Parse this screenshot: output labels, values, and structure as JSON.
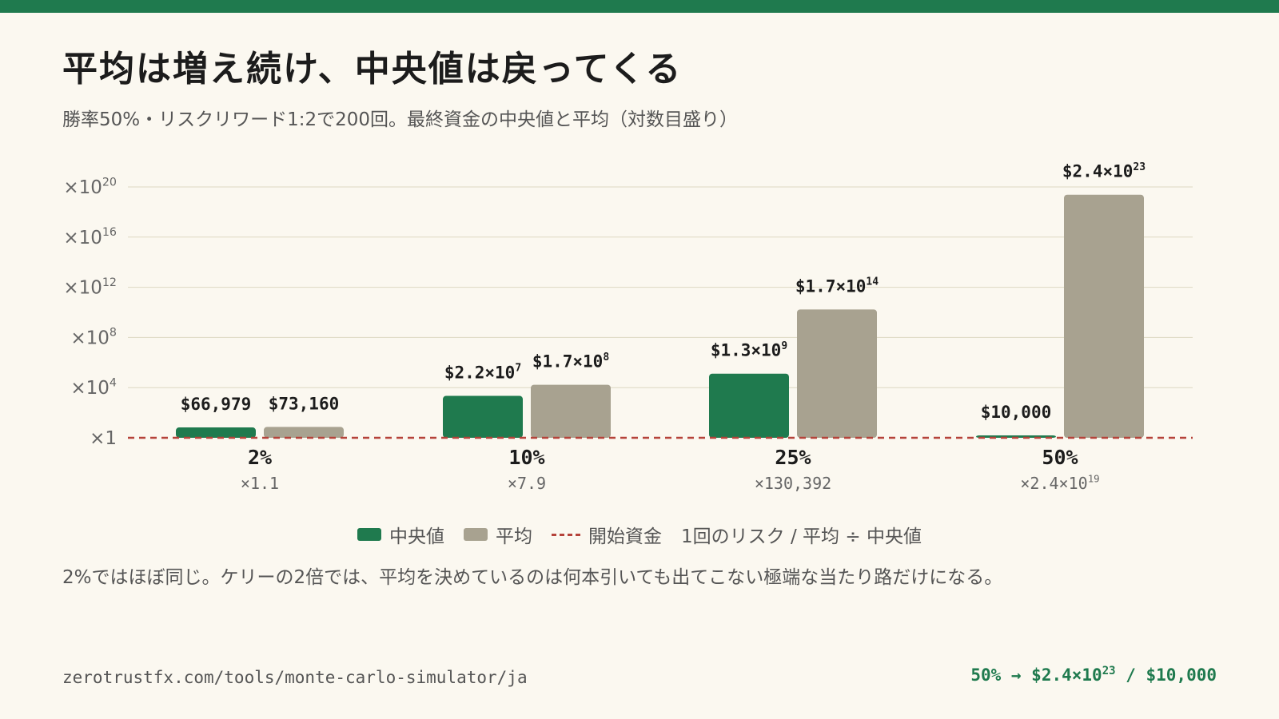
{
  "header": {
    "title": "平均は増え続け、中央値は戻ってくる",
    "subtitle": "勝率50%・リスクリワード1:2で200回。最終資金の中央値と平均（対数目盛り）"
  },
  "colors": {
    "median": "#1f7a4e",
    "mean": "#a8a290",
    "baseline": "#b5433a",
    "accent_bar": "#1f7a4e"
  },
  "chart_data": {
    "type": "bar",
    "yscale": "log10",
    "ylim_log10": [
      0,
      23.4
    ],
    "yticks": [
      {
        "label": "×1",
        "exp": null,
        "log10": 0
      },
      {
        "label": "×10",
        "exp": "4",
        "log10": 4
      },
      {
        "label": "×10",
        "exp": "8",
        "log10": 8
      },
      {
        "label": "×10",
        "exp": "12",
        "log10": 12
      },
      {
        "label": "×10",
        "exp": "16",
        "log10": 16
      },
      {
        "label": "×10",
        "exp": "20",
        "log10": 20
      }
    ],
    "categories": [
      {
        "label": "2%",
        "ratio": "×1.1",
        "ratio_exp": ""
      },
      {
        "label": "10%",
        "ratio": "×7.9",
        "ratio_exp": ""
      },
      {
        "label": "25%",
        "ratio": "×130,392",
        "ratio_exp": ""
      },
      {
        "label": "50%",
        "ratio": "×2.4×10",
        "ratio_exp": "19"
      }
    ],
    "starting_capital": 10000,
    "series": [
      {
        "name": "中央値",
        "values": [
          66979,
          22000000,
          1300000000,
          10000
        ],
        "labels": [
          {
            "text": "$66,979",
            "exp": ""
          },
          {
            "text": "$2.2×10",
            "exp": "7"
          },
          {
            "text": "$1.3×10",
            "exp": "9"
          },
          {
            "text": "$10,000",
            "exp": ""
          }
        ]
      },
      {
        "name": "平均",
        "values": [
          73160,
          170000000,
          170000000000000.0,
          2.4e+23
        ],
        "labels": [
          {
            "text": "$73,160",
            "exp": ""
          },
          {
            "text": "$1.7×10",
            "exp": "8"
          },
          {
            "text": "$1.7×10",
            "exp": "14"
          },
          {
            "text": "$2.4×10",
            "exp": "23"
          }
        ]
      }
    ],
    "grid": true
  },
  "legend": {
    "median": "中央値",
    "mean": "平均",
    "baseline": "開始資金",
    "ratio_note": "1回のリスク / 平均 ÷ 中央値"
  },
  "note": "2%ではほぼ同じ。ケリーの2倍では、平均を決めているのは何本引いても出てこない極端な当たり路だけになる。",
  "footer": {
    "url": "zerotrustfx.com/tools/monte-carlo-simulator/ja",
    "summary_prefix": "50% → $2.4×10",
    "summary_exp": "23",
    "summary_suffix": " / $10,000"
  }
}
